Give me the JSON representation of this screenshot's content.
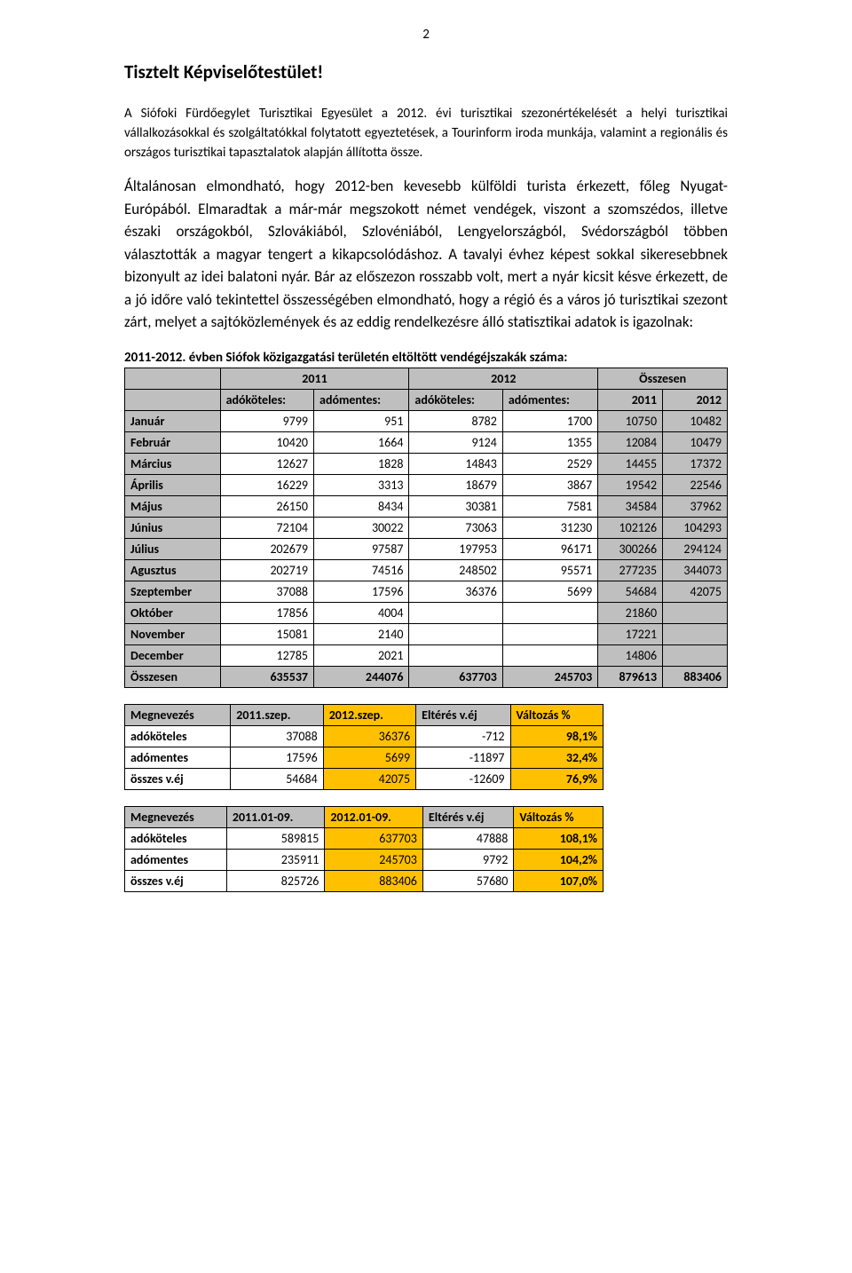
{
  "pageNumber": "2",
  "heading": "Tisztelt Képviselőtestület!",
  "para1": "A Siófoki Fürdőegylet Turisztikai Egyesület a 2012. évi turisztikai szezonértékelését a helyi turisztikai vállalkozásokkal és szolgáltatókkal folytatott egyeztetések, a Tourinform iroda munkája, valamint a regionális és országos turisztikai tapasztalatok alapján állította össze.",
  "para2": "Általánosan elmondható, hogy 2012-ben kevesebb külföldi turista érkezett, főleg Nyugat-Európából. Elmaradtak a már-már megszokott német vendégek, viszont a szomszédos, illetve északi országokból, Szlovákiából, Szlovéniából, Lengyelországból, Svédországból többen választották a magyar tengert a kikapcsolódáshoz. A tavalyi évhez képest sokkal sikeresebbnek bizonyult az idei balatoni nyár. Bár az előszezon rosszabb volt, mert a nyár kicsit késve érkezett, de a jó időre való tekintettel összességében elmondható, hogy a régió és a város jó turisztikai szezont zárt, melyet a sajtóközlemények és az eddig rendelkezésre álló statisztikai adatok is igazolnak:",
  "table1": {
    "title": "2011-2012. évben Siófok közigazgatási területén eltöltött vendégéjszakák száma:",
    "mainHeaders": [
      "",
      "2011",
      "2012",
      "Összesen"
    ],
    "subHeaders": [
      "",
      "adóköteles:",
      "adómentes:",
      "adóköteles:",
      "adómentes:",
      "2011",
      "2012"
    ],
    "rows": [
      [
        "Január",
        "9799",
        "951",
        "8782",
        "1700",
        "10750",
        "10482"
      ],
      [
        "Február",
        "10420",
        "1664",
        "9124",
        "1355",
        "12084",
        "10479"
      ],
      [
        "Március",
        "12627",
        "1828",
        "14843",
        "2529",
        "14455",
        "17372"
      ],
      [
        "Április",
        "16229",
        "3313",
        "18679",
        "3867",
        "19542",
        "22546"
      ],
      [
        "Május",
        "26150",
        "8434",
        "30381",
        "7581",
        "34584",
        "37962"
      ],
      [
        "Június",
        "72104",
        "30022",
        "73063",
        "31230",
        "102126",
        "104293"
      ],
      [
        "Július",
        "202679",
        "97587",
        "197953",
        "96171",
        "300266",
        "294124"
      ],
      [
        "Agusztus",
        "202719",
        "74516",
        "248502",
        "95571",
        "277235",
        "344073"
      ],
      [
        "Szeptember",
        "37088",
        "17596",
        "36376",
        "5699",
        "54684",
        "42075"
      ],
      [
        "Október",
        "17856",
        "4004",
        "",
        "",
        "21860",
        ""
      ],
      [
        "November",
        "15081",
        "2140",
        "",
        "",
        "17221",
        ""
      ],
      [
        "December",
        "12785",
        "2021",
        "",
        "",
        "14806",
        ""
      ],
      [
        "Összesen",
        "635537",
        "244076",
        "637703",
        "245703",
        "879613",
        "883406"
      ]
    ]
  },
  "table2": {
    "headers": [
      "Megnevezés",
      "2011.szep.",
      "2012.szep.",
      "Eltérés v.éj",
      "Változás %"
    ],
    "rows": [
      [
        "adóköteles",
        "37088",
        "36376",
        "-712",
        "98,1%"
      ],
      [
        "adómentes",
        "17596",
        "5699",
        "-11897",
        "32,4%"
      ],
      [
        "összes v.éj",
        "54684",
        "42075",
        "-12609",
        "76,9%"
      ]
    ]
  },
  "table3": {
    "headers": [
      "Megnevezés",
      "2011.01-09.",
      "2012.01-09.",
      "Eltérés v.éj",
      "Változás %"
    ],
    "rows": [
      [
        "adóköteles",
        "589815",
        "637703",
        "47888",
        "108,1%"
      ],
      [
        "adómentes",
        "235911",
        "245703",
        "9792",
        "104,2%"
      ],
      [
        "összes v.éj",
        "825726",
        "883406",
        "57680",
        "107,0%"
      ]
    ]
  }
}
